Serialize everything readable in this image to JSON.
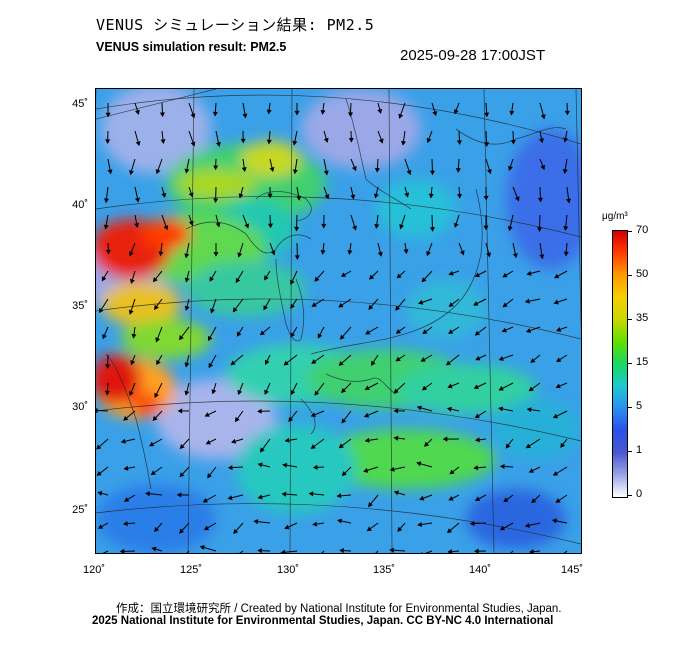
{
  "title_jp": "VENUS シミュレーション結果: PM2.5",
  "title_en": "VENUS simulation result: PM2.5",
  "timestamp": "2025-09-28 17:00JST",
  "axes": {
    "lat_labels": [
      "45˚",
      "40˚",
      "35˚",
      "30˚",
      "25˚"
    ],
    "lon_labels": [
      "120˚",
      "125˚",
      "130˚",
      "135˚",
      "140˚",
      "145˚"
    ]
  },
  "colorbar": {
    "unit": "μg/m³",
    "ticks": [
      "70",
      "50",
      "35",
      "15",
      "5",
      "1",
      "0"
    ],
    "colors": [
      "#d40000",
      "#ff9a00",
      "#f7d000",
      "#60e000",
      "#20c8d0",
      "#2a50e8",
      "#9aa4e8",
      "#ffffff"
    ]
  },
  "credits": {
    "line1": "作成：国立環境研究所 / Created by National Institute for Environmental Studies, Japan.",
    "line2": "2025 National Institute for Environmental Studies, Japan. CC BY-NC 4.0 International"
  },
  "map": {
    "field": "PM2.5",
    "wind_vectors": "shown",
    "graticule": "shown",
    "coastlines": "shown"
  }
}
